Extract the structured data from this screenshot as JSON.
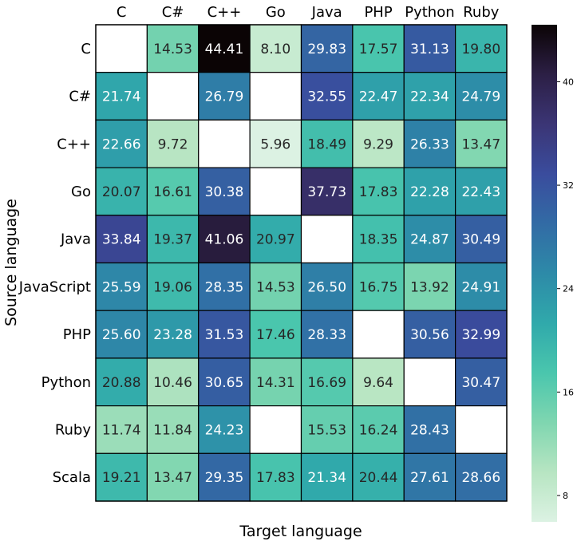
{
  "chart_data": {
    "type": "heatmap",
    "title": "",
    "xlabel": "Target language",
    "ylabel": "Source language",
    "x_categories": [
      "C",
      "C#",
      "C++",
      "Go",
      "Java",
      "PHP",
      "Python",
      "Ruby"
    ],
    "y_categories": [
      "C",
      "C#",
      "C++",
      "Go",
      "Java",
      "JavaScript",
      "PHP",
      "Python",
      "Ruby",
      "Scala"
    ],
    "x_axis_position": "top",
    "values": [
      [
        null,
        14.53,
        44.41,
        8.1,
        29.83,
        17.57,
        31.13,
        19.8
      ],
      [
        21.74,
        null,
        26.79,
        null,
        32.55,
        22.47,
        22.34,
        24.79
      ],
      [
        22.66,
        9.72,
        null,
        5.96,
        18.49,
        9.29,
        26.33,
        13.47
      ],
      [
        20.07,
        16.61,
        30.38,
        null,
        37.73,
        17.83,
        22.28,
        22.43
      ],
      [
        33.84,
        19.37,
        41.06,
        20.97,
        null,
        18.35,
        24.87,
        30.49
      ],
      [
        25.59,
        19.06,
        28.35,
        14.53,
        26.5,
        16.75,
        13.92,
        24.91
      ],
      [
        25.6,
        23.28,
        31.53,
        17.46,
        28.33,
        null,
        30.56,
        32.99
      ],
      [
        20.88,
        10.46,
        30.65,
        14.31,
        16.69,
        9.64,
        null,
        30.47
      ],
      [
        11.74,
        11.84,
        24.23,
        null,
        15.53,
        16.24,
        28.43,
        null
      ],
      [
        19.21,
        13.47,
        29.35,
        17.83,
        21.34,
        20.44,
        27.61,
        28.66
      ]
    ],
    "value_labels": [
      [
        "",
        "14.53",
        "44.41",
        "8.10",
        "29.83",
        "17.57",
        "31.13",
        "19.80"
      ],
      [
        "21.74",
        "",
        "26.79",
        "",
        "32.55",
        "22.47",
        "22.34",
        "24.79"
      ],
      [
        "22.66",
        "9.72",
        "",
        "5.96",
        "18.49",
        "9.29",
        "26.33",
        "13.47"
      ],
      [
        "20.07",
        "16.61",
        "30.38",
        "",
        "37.73",
        "17.83",
        "22.28",
        "22.43"
      ],
      [
        "33.84",
        "19.37",
        "41.06",
        "20.97",
        "",
        "18.35",
        "24.87",
        "30.49"
      ],
      [
        "25.59",
        "19.06",
        "28.35",
        "14.53",
        "26.50",
        "16.75",
        "13.92",
        "24.91"
      ],
      [
        "25.60",
        "23.28",
        "31.53",
        "17.46",
        "28.33",
        "",
        "30.56",
        "32.99"
      ],
      [
        "20.88",
        "10.46",
        "30.65",
        "14.31",
        "16.69",
        "9.64",
        "",
        "30.47"
      ],
      [
        "11.74",
        "11.84",
        "24.23",
        "",
        "15.53",
        "16.24",
        "28.43",
        ""
      ],
      [
        "19.21",
        "13.47",
        "29.35",
        "17.83",
        "21.34",
        "20.44",
        "27.61",
        "28.66"
      ]
    ],
    "colorbar": {
      "min": 5.96,
      "max": 44.41,
      "ticks": [
        8,
        16,
        24,
        32,
        40
      ],
      "tick_labels": [
        "8",
        "16",
        "24",
        "32",
        "40"
      ],
      "colormap": "mako_r",
      "stops": [
        "#dcf2e3",
        "#b7e5c2",
        "#7fd6b0",
        "#4ac6ad",
        "#30a9ab",
        "#2d8aa8",
        "#326ba5",
        "#3a4c9d",
        "#3b3575",
        "#2c1f45",
        "#0b0405"
      ]
    }
  }
}
